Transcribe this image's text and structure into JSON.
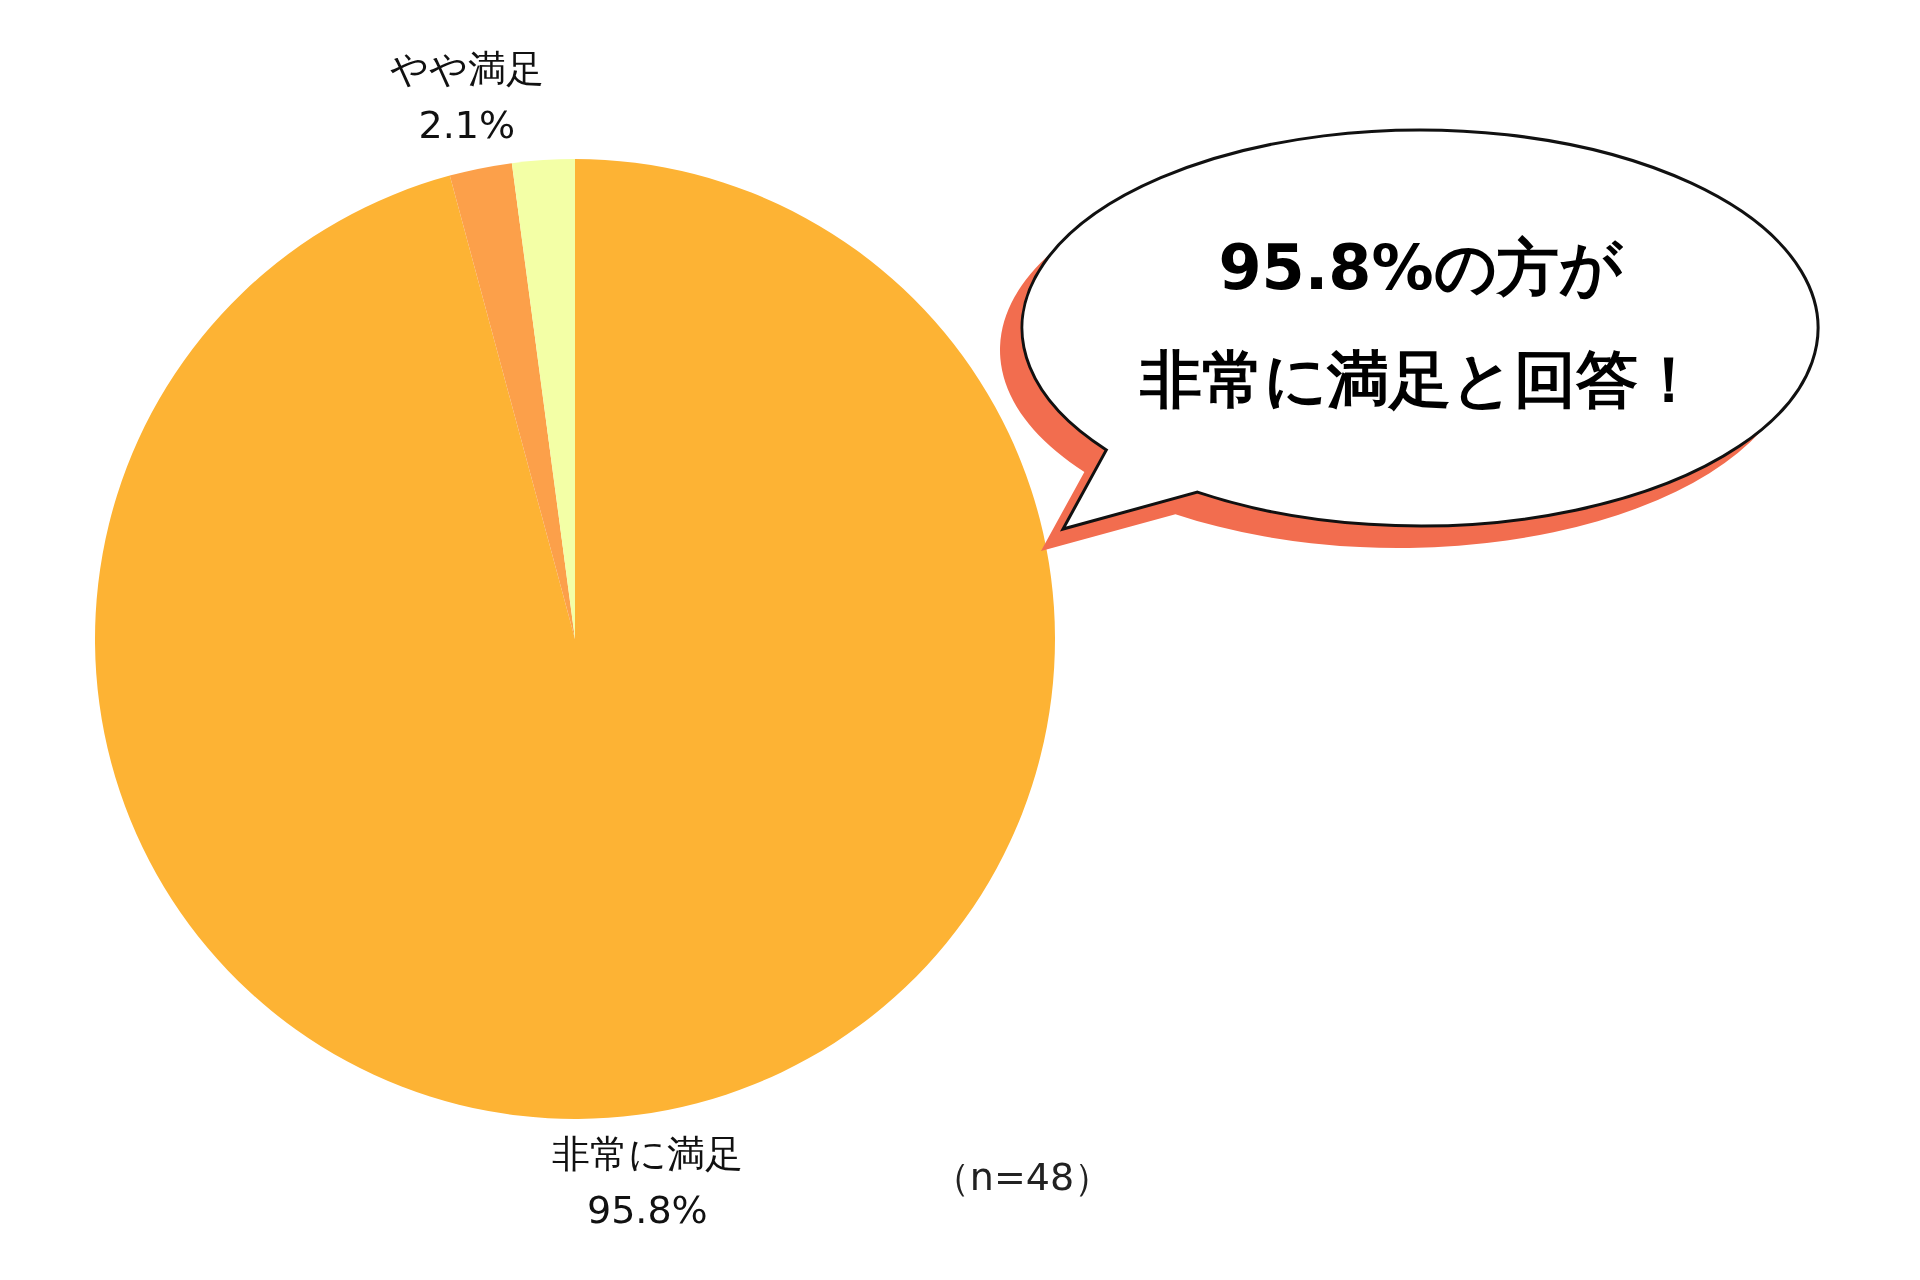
{
  "chart_data": {
    "type": "pie",
    "categories": [
      "非常に満足",
      "やや満足",
      null
    ],
    "values": [
      95.8,
      2.1,
      2.1
    ],
    "colors": [
      "#fdb334",
      "#fca04a",
      "#f3ffa6"
    ],
    "value_labels": [
      "95.8%",
      "2.1%",
      null
    ],
    "annotations": [
      "95.8%の方が",
      "非常に満足と回答！",
      "（n=48）"
    ]
  }
}
